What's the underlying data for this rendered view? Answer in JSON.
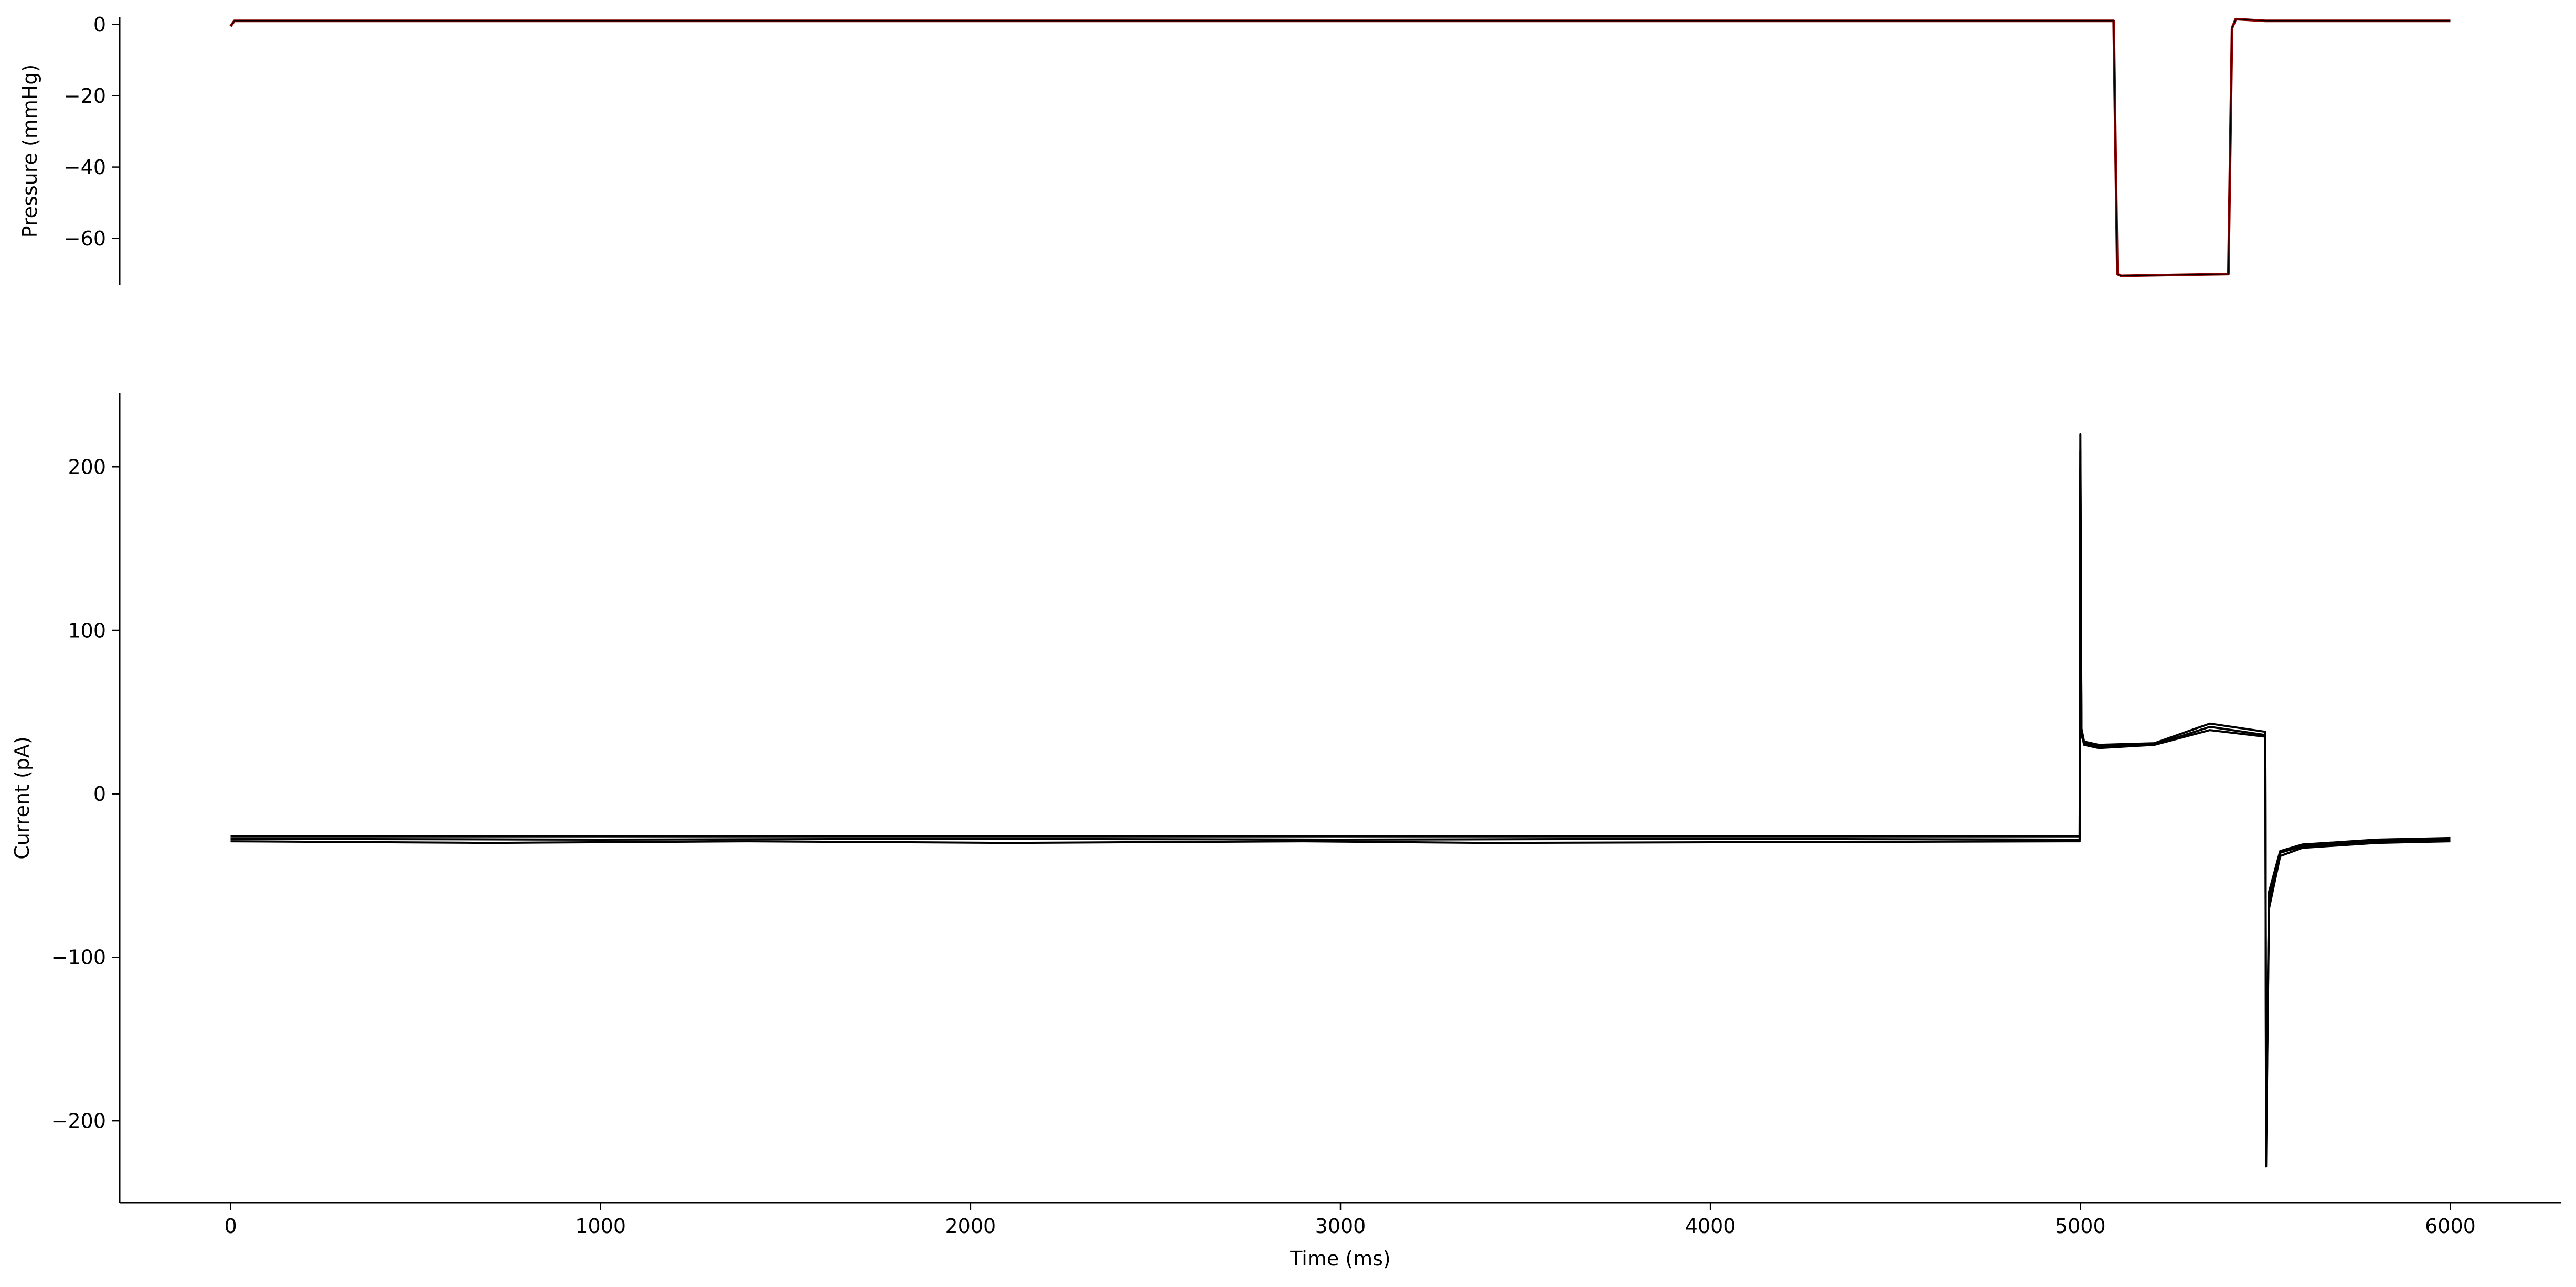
{
  "chart_data": [
    {
      "type": "line",
      "panel": "top",
      "xlabel": "",
      "ylabel": "Pressure (mmHg)",
      "xlim": [
        -300,
        6300
      ],
      "ylim": [
        -73,
        2
      ],
      "yticks": [
        0,
        -20,
        -40,
        -60
      ],
      "ytick_labels": [
        "0",
        "−20",
        "−40",
        "−60"
      ],
      "show_xaxis": false,
      "grid": false,
      "colors": {
        "pressure": "#8b0000",
        "overlay": "#000000"
      },
      "series": [
        {
          "x": [
            0,
            10,
            5090,
            5100,
            5110,
            5400,
            5410,
            5420,
            5500,
            6000
          ],
          "y": [
            -0.5,
            1,
            1,
            -70,
            -70.5,
            -70,
            -1,
            1.5,
            1,
            1
          ]
        }
      ]
    },
    {
      "type": "line",
      "panel": "bottom",
      "xlabel": "Time (ms)",
      "ylabel": "Current (pA)",
      "xlim": [
        -300,
        6300
      ],
      "ylim": [
        -250,
        245
      ],
      "xticks": [
        0,
        1000,
        2000,
        3000,
        4000,
        5000,
        6000
      ],
      "xtick_labels": [
        "0",
        "1000",
        "2000",
        "3000",
        "4000",
        "5000",
        "6000"
      ],
      "yticks": [
        200,
        100,
        0,
        -100,
        -200
      ],
      "ytick_labels": [
        "200",
        "100",
        "0",
        "−100",
        "−200"
      ],
      "grid": false,
      "colors": {
        "trace": "#000000"
      },
      "series": [
        {
          "x": [
            0,
            1000,
            2000,
            3000,
            4000,
            4998,
            5000,
            5003,
            5010,
            5050,
            5200,
            5350,
            5500,
            5502,
            5510,
            5540,
            5600,
            5800,
            6000
          ],
          "y": [
            -26,
            -26,
            -26,
            -26,
            -26,
            -26,
            220,
            40,
            32,
            30,
            31,
            43,
            38,
            -228,
            -60,
            -35,
            -31,
            -28,
            -27
          ]
        },
        {
          "x": [
            0,
            700,
            1400,
            2100,
            2900,
            3400,
            4998,
            5000,
            5003,
            5010,
            5050,
            5200,
            5350,
            5500,
            5502,
            5510,
            5540,
            5600,
            5800,
            6000
          ],
          "y": [
            -29,
            -30,
            -29,
            -30,
            -29,
            -30,
            -29,
            210,
            38,
            30,
            28,
            30,
            39,
            35,
            -215,
            -70,
            -38,
            -33,
            -30,
            -29
          ]
        },
        {
          "x": [
            0,
            1000,
            2000,
            3000,
            4000,
            4998,
            5000,
            5003,
            5010,
            5050,
            5200,
            5350,
            5500,
            5502,
            5510,
            5540,
            5600,
            5800,
            6000
          ],
          "y": [
            -27.5,
            -28,
            -27.5,
            -28,
            -27.5,
            -28,
            200,
            36,
            31,
            29,
            30,
            41,
            36,
            -200,
            -65,
            -36,
            -32,
            -29,
            -28
          ]
        }
      ]
    }
  ]
}
